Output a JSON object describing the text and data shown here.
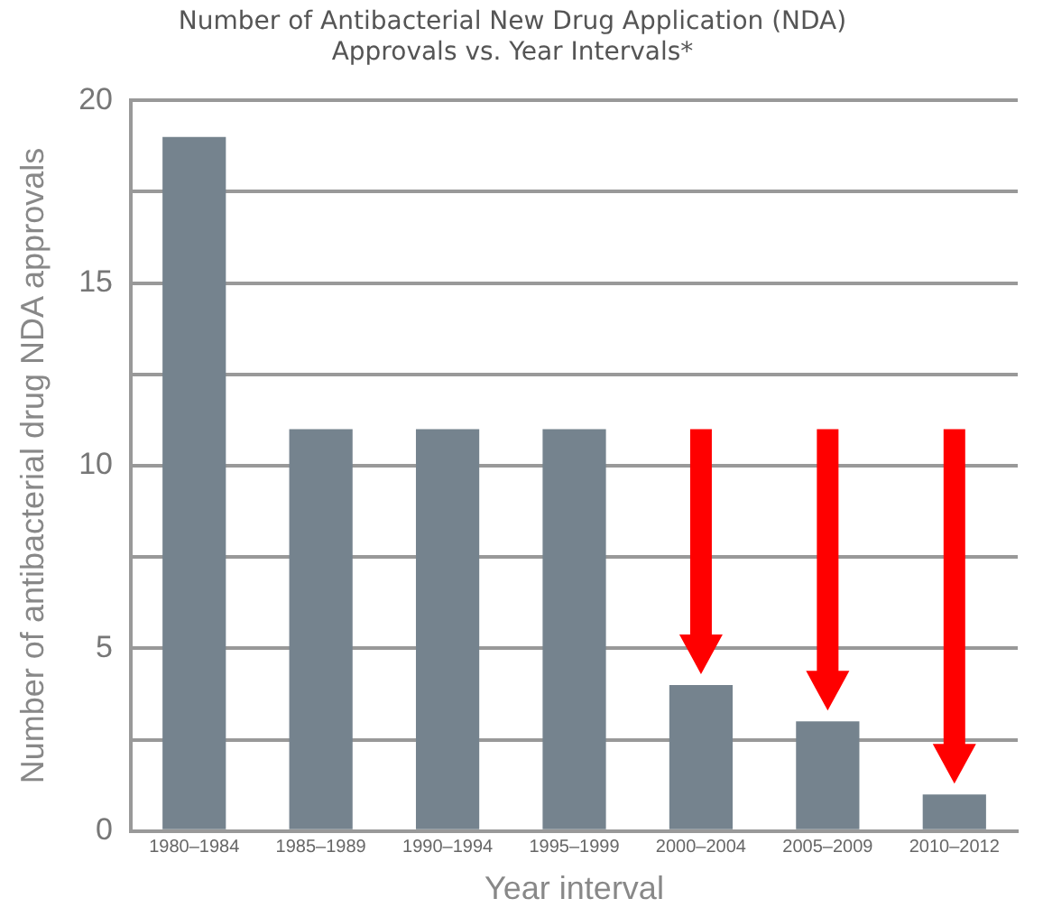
{
  "chart_data": {
    "type": "bar",
    "title": "Number of Antibacterial New Drug Application (NDA)\nApprovals vs. Year Intervals*",
    "xlabel": "Year interval",
    "ylabel": "Number of antibacterial drug NDA approvals",
    "categories": [
      "1980–1984",
      "1985–1989",
      "1990–1994",
      "1995–1999",
      "2000–2004",
      "2005–2009",
      "2010–2012"
    ],
    "values": [
      19,
      11,
      11,
      11,
      4,
      3,
      1
    ],
    "color": "#75838e",
    "ylim": [
      0,
      20
    ],
    "yticks": [
      0,
      {
        "value": 2.5,
        "label": null
      },
      5,
      {
        "value": 7.5,
        "label": null
      },
      10,
      {
        "value": 12.5,
        "label": null
      },
      15,
      {
        "value": 17.5,
        "label": null
      },
      20
    ],
    "grid": "y"
  }
}
